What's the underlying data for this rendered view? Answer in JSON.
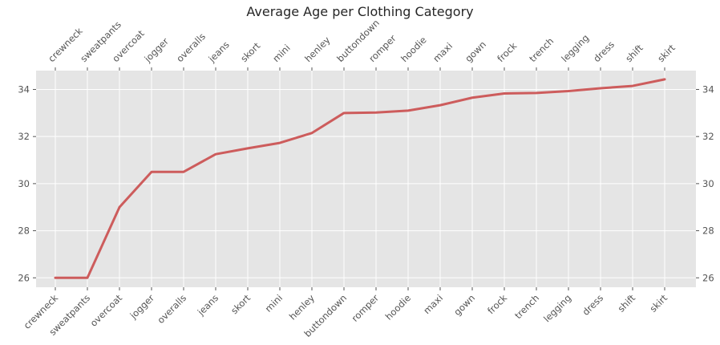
{
  "chart_data": {
    "type": "line",
    "title": "Average Age per Clothing Category",
    "xlabel": "",
    "ylabel": "",
    "categories": [
      "crewneck",
      "sweatpants",
      "overcoat",
      "jogger",
      "overalls",
      "jeans",
      "skort",
      "mini",
      "henley",
      "buttondown",
      "romper",
      "hoodie",
      "maxi",
      "gown",
      "frock",
      "trench",
      "legging",
      "dress",
      "shift",
      "skirt"
    ],
    "series": [
      {
        "values": [
          26.0,
          26.0,
          29.0,
          30.5,
          30.5,
          31.25,
          31.5,
          31.73,
          32.15,
          33.0,
          33.02,
          33.1,
          33.33,
          33.65,
          33.83,
          33.85,
          33.93,
          34.05,
          34.15,
          34.43
        ]
      }
    ],
    "yticks": [
      26,
      28,
      30,
      32,
      34
    ],
    "ylim": [
      25.6,
      34.8
    ],
    "grid": true,
    "x_tick_labels_top": true,
    "y_tick_labels_right": true,
    "colors": {
      "line": "#cd5c5c",
      "plot_background": "#e5e5e5",
      "grid": "#ffffff"
    }
  }
}
